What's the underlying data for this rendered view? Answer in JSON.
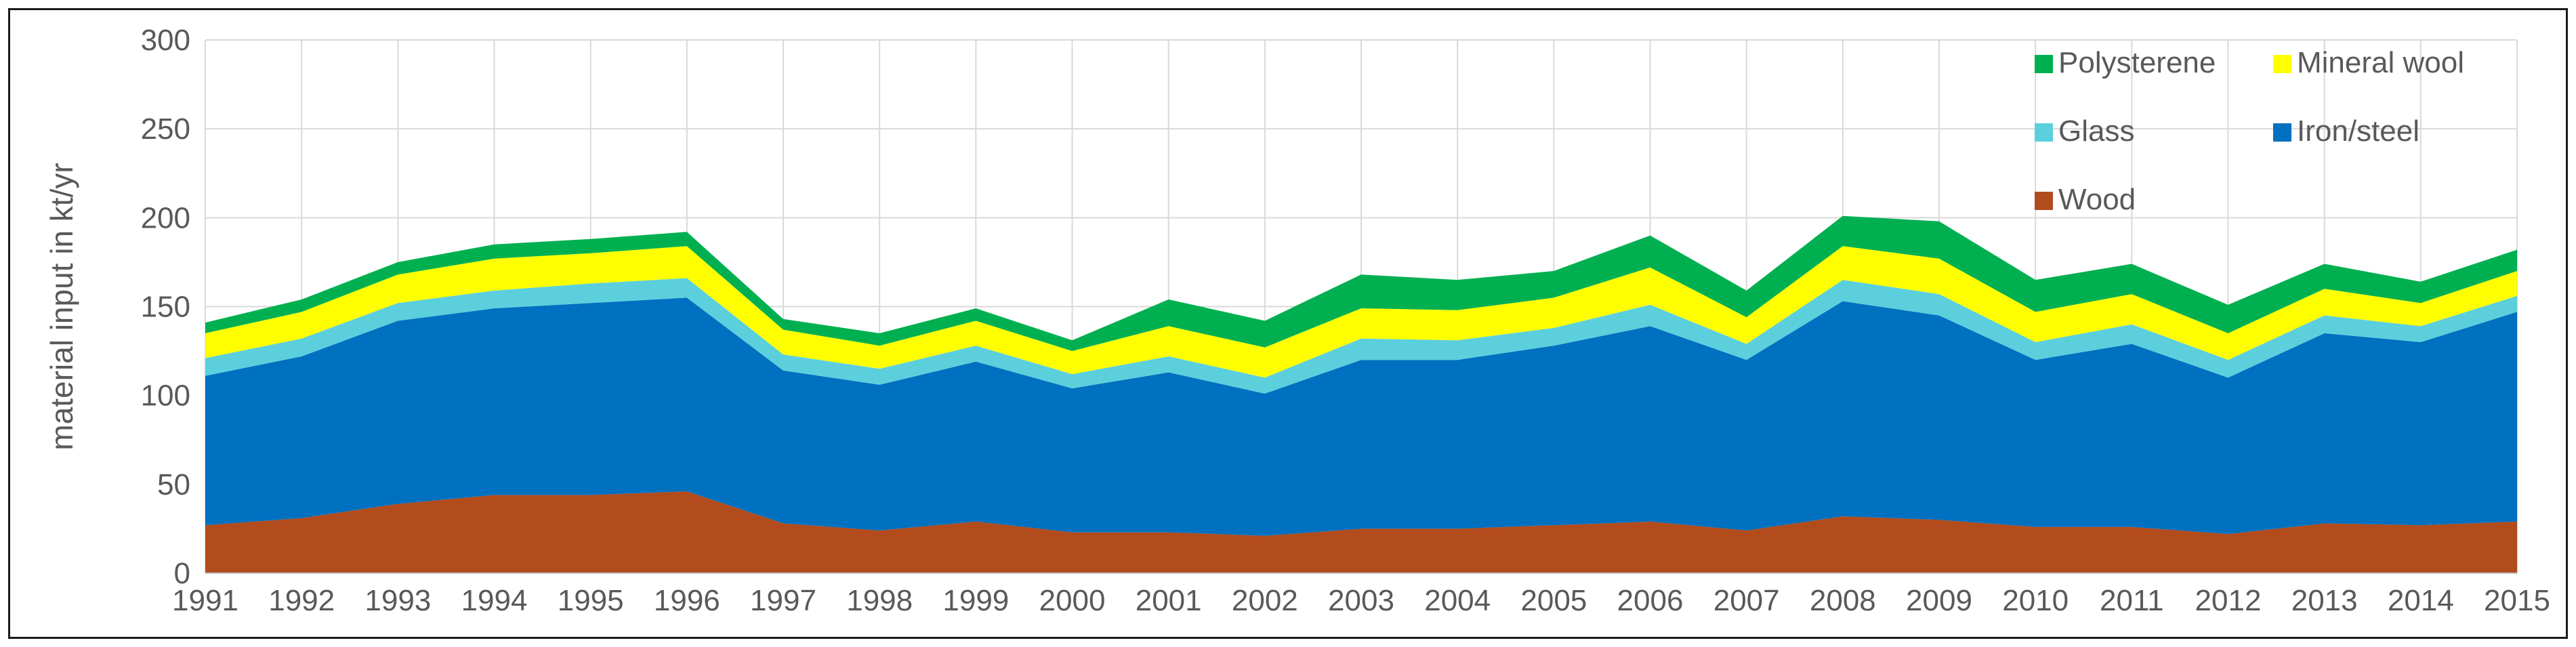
{
  "chart_data": {
    "type": "area",
    "stacked": true,
    "title": "",
    "xlabel": "",
    "ylabel": "material input in kt/yr",
    "ylim": [
      0,
      300
    ],
    "yticks": [
      0,
      50,
      100,
      150,
      200,
      250,
      300
    ],
    "grid": true,
    "legend_position": "top-right",
    "categories": [
      "1991",
      "1992",
      "1993",
      "1994",
      "1995",
      "1996",
      "1997",
      "1998",
      "1999",
      "2000",
      "2001",
      "2002",
      "2003",
      "2004",
      "2005",
      "2006",
      "2007",
      "2008",
      "2009",
      "2010",
      "2011",
      "2012",
      "2013",
      "2014",
      "2015"
    ],
    "series": [
      {
        "name": "Wood",
        "color": "#b24c1c",
        "values": [
          27,
          31,
          39,
          44,
          44,
          46,
          28,
          24,
          29,
          23,
          23,
          21,
          25,
          25,
          27,
          29,
          24,
          32,
          30,
          26,
          26,
          22,
          28,
          27,
          29
        ]
      },
      {
        "name": "Iron/steel",
        "color": "#0070c0",
        "values": [
          84,
          91,
          103,
          105,
          108,
          109,
          86,
          82,
          90,
          81,
          90,
          80,
          95,
          95,
          101,
          110,
          96,
          121,
          115,
          94,
          103,
          88,
          107,
          103,
          118
        ]
      },
      {
        "name": "Glass",
        "color": "#5ccfdd",
        "values": [
          10,
          10,
          10,
          10,
          11,
          11,
          9,
          9,
          9,
          8,
          9,
          9,
          12,
          11,
          10,
          12,
          9,
          12,
          12,
          10,
          11,
          10,
          10,
          9,
          9
        ]
      },
      {
        "name": "Mineral wool",
        "color": "#ffff00",
        "values": [
          14,
          15,
          16,
          18,
          17,
          18,
          14,
          13,
          14,
          13,
          17,
          17,
          17,
          17,
          17,
          21,
          15,
          19,
          20,
          17,
          17,
          15,
          15,
          13,
          14
        ]
      },
      {
        "name": "Polysterene",
        "color": "#00b050",
        "values": [
          6,
          7,
          7,
          8,
          8,
          8,
          6,
          7,
          7,
          6,
          15,
          15,
          19,
          17,
          15,
          18,
          15,
          17,
          21,
          18,
          17,
          16,
          14,
          12,
          12
        ]
      }
    ],
    "legend_order": [
      "Polysterene",
      "Mineral wool",
      "Glass",
      "Iron/steel",
      "Wood"
    ]
  }
}
